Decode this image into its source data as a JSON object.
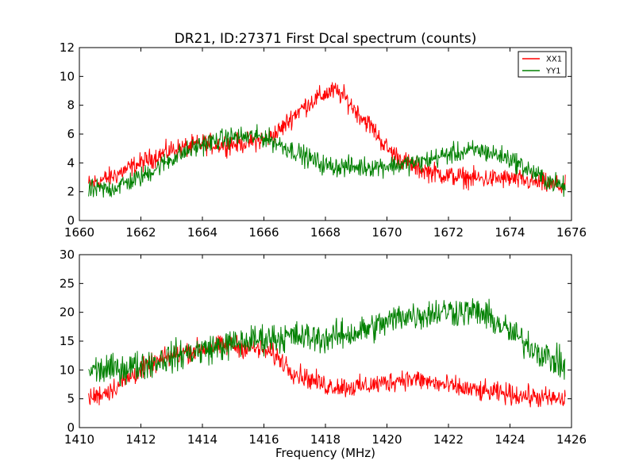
{
  "figure": {
    "title": "DR21, ID:27371 First Dcal spectrum (counts)",
    "xlabel": "Frequency (MHz)"
  },
  "legend": {
    "entries": [
      {
        "label": "XX1",
        "color": "#ff0000"
      },
      {
        "label": "YY1",
        "color": "#008000"
      }
    ]
  },
  "chart_data": [
    {
      "type": "line",
      "title": "DR21, ID:27371 First Dcal spectrum (counts)",
      "xlabel": "",
      "ylabel": "",
      "xlim": [
        1660,
        1676
      ],
      "ylim": [
        0,
        12
      ],
      "xticks": [
        1660,
        1662,
        1664,
        1666,
        1668,
        1670,
        1672,
        1674,
        1676
      ],
      "yticks": [
        0,
        2,
        4,
        6,
        8,
        10,
        12
      ],
      "grid": false,
      "legend_position": "top-right",
      "noise": [
        0.35,
        0.35
      ],
      "series": [
        {
          "name": "XX1",
          "color": "#ff0000",
          "x": [
            1660.3,
            1661,
            1662,
            1663,
            1664,
            1665,
            1666,
            1666.5,
            1667,
            1667.5,
            1668,
            1668.3,
            1668.6,
            1669,
            1669.5,
            1670,
            1670.5,
            1671,
            1672,
            1673,
            1674,
            1675,
            1675.8
          ],
          "y": [
            2.5,
            3.0,
            4.0,
            4.9,
            5.3,
            5.3,
            5.6,
            6.2,
            7.4,
            8.2,
            8.8,
            9.0,
            8.6,
            7.6,
            6.5,
            5.0,
            4.2,
            3.6,
            3.1,
            2.9,
            2.9,
            2.6,
            2.3
          ]
        },
        {
          "name": "YY1",
          "color": "#008000",
          "x": [
            1660.3,
            1661,
            1662,
            1663,
            1664,
            1665,
            1666,
            1667,
            1668,
            1669,
            1670,
            1671,
            1672,
            1673,
            1674,
            1675,
            1675.8
          ],
          "y": [
            2.1,
            2.2,
            3.0,
            4.3,
            5.3,
            5.8,
            5.8,
            4.8,
            3.8,
            3.7,
            3.8,
            4.0,
            4.6,
            4.9,
            4.3,
            3.0,
            2.3
          ]
        }
      ]
    },
    {
      "type": "line",
      "title": "",
      "xlabel": "Frequency (MHz)",
      "ylabel": "",
      "xlim": [
        1410,
        1426
      ],
      "ylim": [
        0,
        30
      ],
      "xticks": [
        1410,
        1412,
        1414,
        1416,
        1418,
        1420,
        1422,
        1424,
        1426
      ],
      "yticks": [
        0,
        5,
        10,
        15,
        20,
        25,
        30
      ],
      "grid": false,
      "noise": [
        0.9,
        1.3
      ],
      "series": [
        {
          "name": "XX1",
          "color": "#ff0000",
          "x": [
            1410.3,
            1411,
            1412,
            1413,
            1414,
            1415,
            1416,
            1416.5,
            1417,
            1418,
            1419,
            1420,
            1420.5,
            1421,
            1422,
            1423,
            1424,
            1425,
            1425.8
          ],
          "y": [
            5.0,
            6.5,
            10.0,
            12.5,
            13.8,
            14.2,
            13.5,
            12.0,
            9.5,
            7.3,
            7.0,
            7.8,
            8.5,
            8.3,
            7.2,
            6.3,
            5.8,
            5.2,
            4.8
          ]
        },
        {
          "name": "YY1",
          "color": "#008000",
          "x": [
            1410.3,
            1411,
            1412,
            1413,
            1414,
            1415,
            1416,
            1417,
            1418,
            1419,
            1420,
            1420.5,
            1421,
            1422,
            1423,
            1423.5,
            1424,
            1425,
            1425.8
          ],
          "y": [
            10.0,
            10.0,
            10.8,
            12.3,
            13.5,
            14.5,
            15.5,
            15.8,
            15.5,
            16.5,
            18.2,
            19.5,
            19.5,
            20.3,
            20.0,
            18.5,
            16.5,
            13.0,
            10.5
          ]
        }
      ]
    }
  ]
}
